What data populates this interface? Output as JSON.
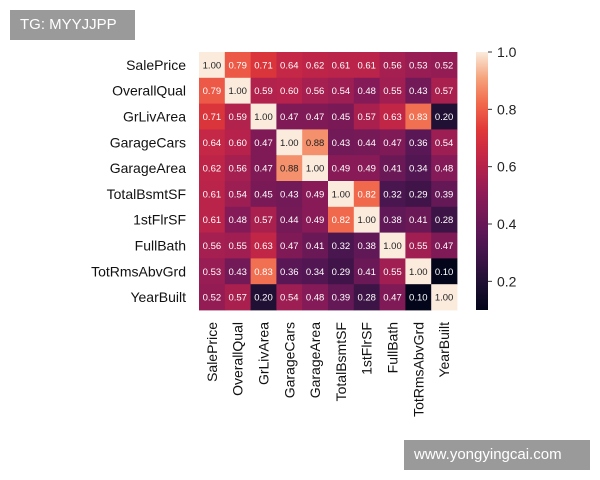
{
  "watermarks": {
    "top_left": "TG: MYYJJPP",
    "bottom_right": "www.yongyingcai.com"
  },
  "chart_data": {
    "type": "heatmap",
    "title": "",
    "xlabel": "",
    "ylabel": "",
    "labels": [
      "SalePrice",
      "OverallQual",
      "GrLivArea",
      "GarageCars",
      "GarageArea",
      "TotalBsmtSF",
      "1stFlrSF",
      "FullBath",
      "TotRmsAbvGrd",
      "YearBuilt"
    ],
    "matrix": [
      [
        1.0,
        0.79,
        0.71,
        0.64,
        0.62,
        0.61,
        0.61,
        0.56,
        0.53,
        0.52
      ],
      [
        0.79,
        1.0,
        0.59,
        0.6,
        0.56,
        0.54,
        0.48,
        0.55,
        0.43,
        0.57
      ],
      [
        0.71,
        0.59,
        1.0,
        0.47,
        0.47,
        0.45,
        0.57,
        0.63,
        0.83,
        0.2
      ],
      [
        0.64,
        0.6,
        0.47,
        1.0,
        0.88,
        0.43,
        0.44,
        0.47,
        0.36,
        0.54
      ],
      [
        0.62,
        0.56,
        0.47,
        0.88,
        1.0,
        0.49,
        0.49,
        0.41,
        0.34,
        0.48
      ],
      [
        0.61,
        0.54,
        0.45,
        0.43,
        0.49,
        1.0,
        0.82,
        0.32,
        0.29,
        0.39
      ],
      [
        0.61,
        0.48,
        0.57,
        0.44,
        0.49,
        0.82,
        1.0,
        0.38,
        0.41,
        0.28
      ],
      [
        0.56,
        0.55,
        0.63,
        0.47,
        0.41,
        0.32,
        0.38,
        1.0,
        0.55,
        0.47
      ],
      [
        0.53,
        0.43,
        0.83,
        0.36,
        0.34,
        0.29,
        0.41,
        0.55,
        1.0,
        0.1
      ],
      [
        0.52,
        0.57,
        0.2,
        0.54,
        0.48,
        0.39,
        0.28,
        0.47,
        0.1,
        1.0
      ]
    ],
    "colorbar": {
      "colormap": "rocket",
      "range": [
        0.1,
        1.0
      ],
      "ticks": [
        0.2,
        0.4,
        0.6,
        0.8,
        1.0
      ],
      "tick_labels": [
        "0.2",
        "0.4",
        "0.6",
        "0.8",
        "1.0"
      ]
    }
  }
}
